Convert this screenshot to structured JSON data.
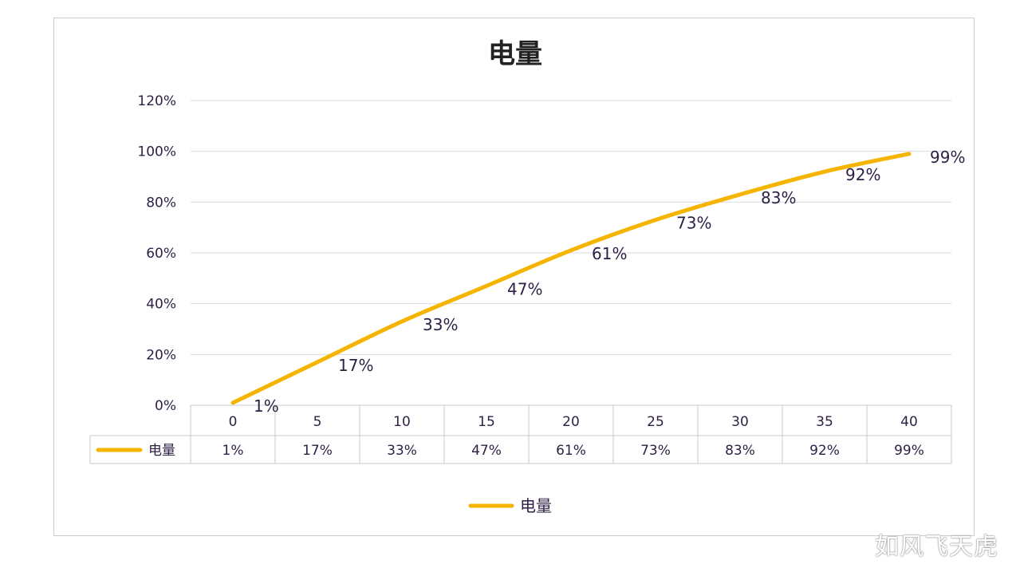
{
  "chart_data": {
    "type": "line",
    "title": "电量",
    "xlabel": "",
    "ylabel": "",
    "categories": [
      "0",
      "5",
      "10",
      "15",
      "20",
      "25",
      "30",
      "35",
      "40"
    ],
    "series": [
      {
        "name": "电量",
        "values": [
          1,
          17,
          33,
          47,
          61,
          73,
          83,
          92,
          99
        ],
        "labels": [
          "1%",
          "17%",
          "33%",
          "47%",
          "61%",
          "73%",
          "83%",
          "92%",
          "99%"
        ]
      }
    ],
    "ylim": [
      0,
      120
    ],
    "yticks": [
      0,
      20,
      40,
      60,
      80,
      100,
      120
    ],
    "ytick_labels": [
      "0%",
      "20%",
      "40%",
      "60%",
      "80%",
      "100%",
      "120%"
    ],
    "grid": true,
    "data_table": true,
    "legend": "bottom",
    "color": "#f5b400"
  },
  "watermark": "如风飞天虎"
}
